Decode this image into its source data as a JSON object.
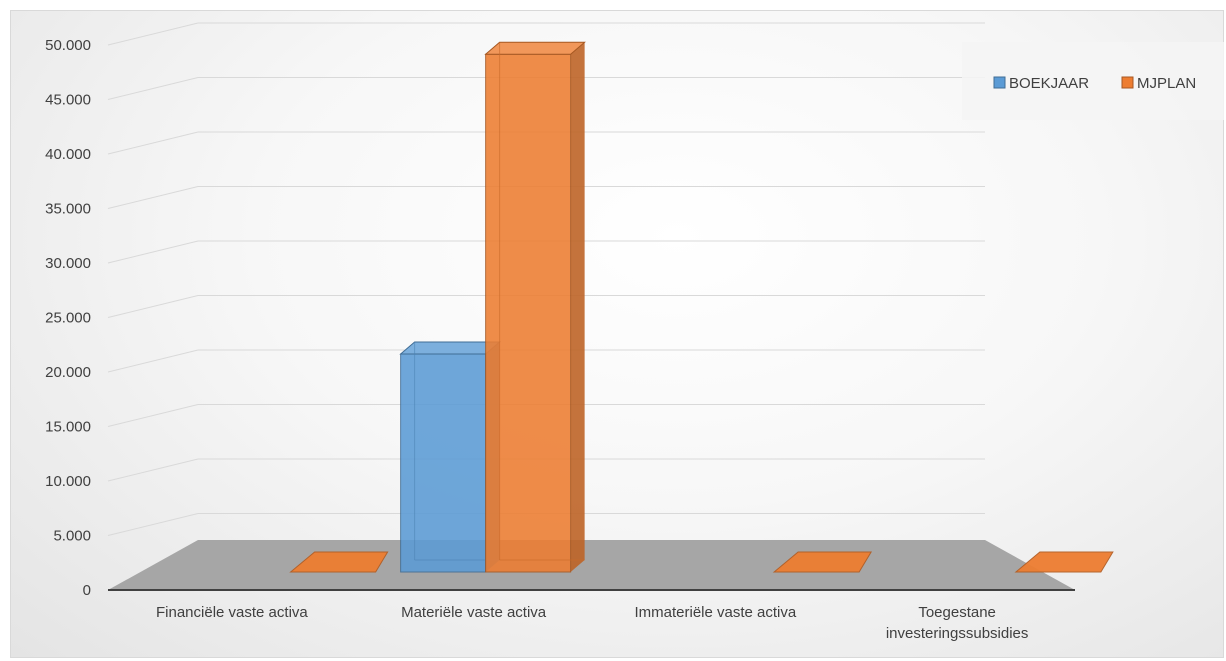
{
  "chart_data": {
    "type": "bar",
    "categories": [
      "Financiële vaste activa",
      "Materiële vaste activa",
      "Immateriële vaste activa",
      "Toegestane investeringssubsidies"
    ],
    "category_lines": [
      [
        "Financiële vaste activa"
      ],
      [
        "Materiële vaste activa"
      ],
      [
        "Immateriële vaste activa"
      ],
      [
        "Toegestane",
        "investeringssubsidies"
      ]
    ],
    "series": [
      {
        "name": "BOEKJAAR",
        "values": [
          0,
          20000,
          0,
          0
        ],
        "color": "#5b9bd5"
      },
      {
        "name": "MJPLAN",
        "values": [
          0,
          47500,
          0,
          0
        ],
        "color": "#ed7d31"
      }
    ],
    "y_ticks": [
      "0",
      "5.000",
      "10.000",
      "15.000",
      "20.000",
      "25.000",
      "30.000",
      "35.000",
      "40.000",
      "45.000",
      "50.000"
    ],
    "ylim": [
      0,
      50000
    ],
    "grid": true,
    "legend": "top-right",
    "style": "3d-column"
  }
}
